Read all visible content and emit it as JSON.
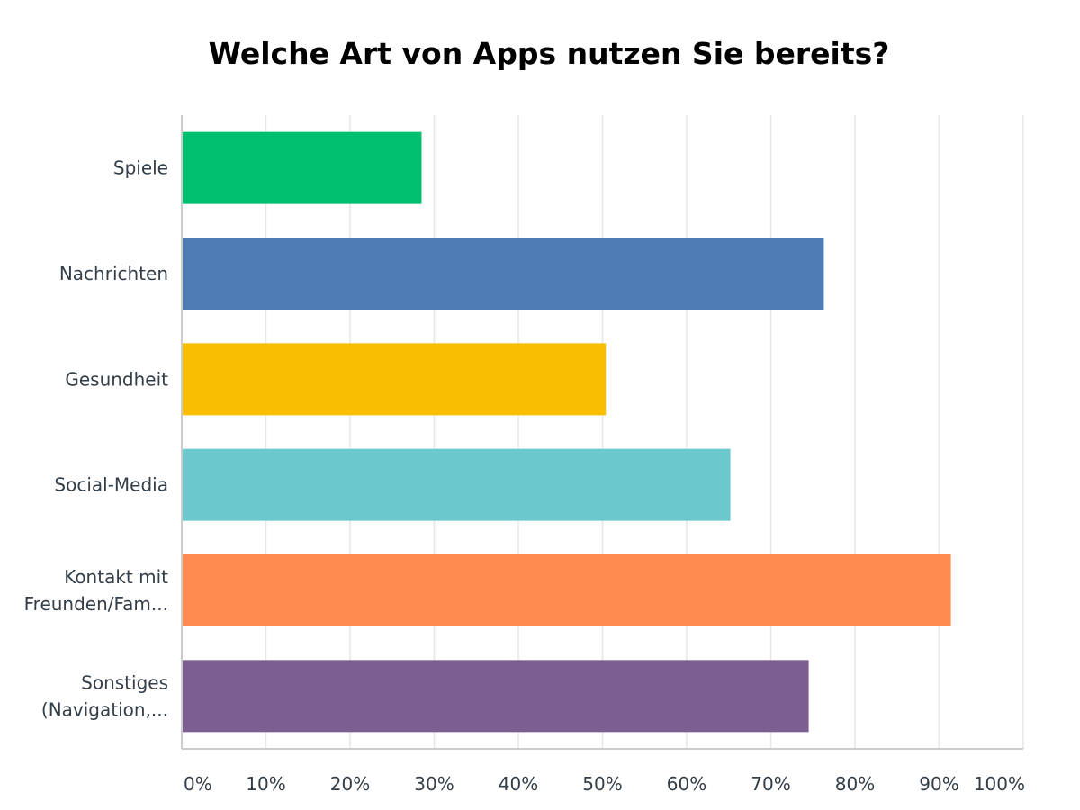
{
  "chart_data": {
    "type": "bar",
    "orientation": "horizontal",
    "title": "Welche Art von Apps nutzen Sie bereits?",
    "categories": [
      [
        "Spiele"
      ],
      [
        "Nachrichten"
      ],
      [
        "Gesundheit"
      ],
      [
        "Social-Media"
      ],
      [
        "Kontakt mit",
        "Freunden/Fam..."
      ],
      [
        "Sonstiges",
        "(Navigation,..."
      ]
    ],
    "values": [
      28.5,
      76.3,
      50.4,
      65.2,
      91.4,
      74.5
    ],
    "colors": [
      "#00bf6f",
      "#507cb6",
      "#f9be00",
      "#6bc8cd",
      "#ff8b4f",
      "#7d5e90"
    ],
    "xlim": [
      0,
      100
    ],
    "xticks": [
      0,
      10,
      20,
      30,
      40,
      50,
      60,
      70,
      80,
      90,
      100
    ],
    "xtick_labels": [
      "0%",
      "10%",
      "20%",
      "30%",
      "40%",
      "50%",
      "60%",
      "70%",
      "80%",
      "90%",
      "100%"
    ],
    "grid": true,
    "legend": "none"
  }
}
